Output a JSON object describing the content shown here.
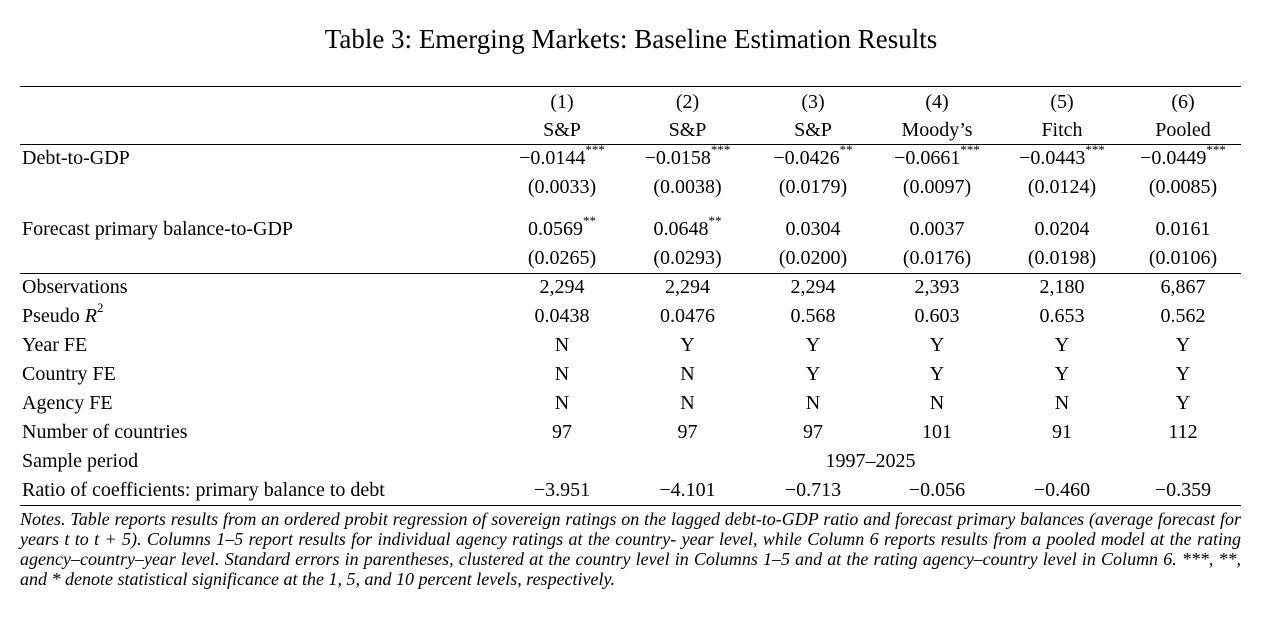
{
  "title": "Table 3: Emerging Markets: Baseline Estimation Results",
  "columns": [
    {
      "num": "(1)",
      "name": "S&P"
    },
    {
      "num": "(2)",
      "name": "S&P"
    },
    {
      "num": "(3)",
      "name": "S&P"
    },
    {
      "num": "(4)",
      "name": "Moody’s"
    },
    {
      "num": "(5)",
      "name": "Fitch"
    },
    {
      "num": "(6)",
      "name": "Pooled"
    }
  ],
  "coefficients": [
    {
      "label": "Debt-to-GDP",
      "estimates": [
        "−0.0144",
        "−0.0158",
        "−0.0426",
        "−0.0661",
        "−0.0443",
        "−0.0449"
      ],
      "stars": [
        "***",
        "***",
        "**",
        "***",
        "***",
        "***"
      ],
      "se": [
        "(0.0033)",
        "(0.0038)",
        "(0.0179)",
        "(0.0097)",
        "(0.0124)",
        "(0.0085)"
      ]
    },
    {
      "label": "Forecast primary balance-to-GDP",
      "estimates": [
        "0.0569",
        "0.0648",
        "0.0304",
        "0.0037",
        "0.0204",
        "0.0161"
      ],
      "stars": [
        "**",
        "**",
        "",
        "",
        "",
        ""
      ],
      "se": [
        "(0.0265)",
        "(0.0293)",
        "(0.0200)",
        "(0.0176)",
        "(0.0198)",
        "(0.0106)"
      ]
    }
  ],
  "stats": [
    {
      "label": "Observations",
      "values": [
        "2,294",
        "2,294",
        "2,294",
        "2,393",
        "2,180",
        "6,867"
      ]
    },
    {
      "label": "Pseudo",
      "label_var": "R",
      "label_sup": "2",
      "values": [
        "0.0438",
        "0.0476",
        "0.568",
        "0.603",
        "0.653",
        "0.562"
      ]
    },
    {
      "label": "Year FE",
      "values": [
        "N",
        "Y",
        "Y",
        "Y",
        "Y",
        "Y"
      ]
    },
    {
      "label": "Country FE",
      "values": [
        "N",
        "N",
        "Y",
        "Y",
        "Y",
        "Y"
      ]
    },
    {
      "label": "Agency FE",
      "values": [
        "N",
        "N",
        "N",
        "N",
        "N",
        "Y"
      ]
    },
    {
      "label": "Number of countries",
      "values": [
        "97",
        "97",
        "97",
        "101",
        "91",
        "112"
      ]
    }
  ],
  "sample_period": {
    "label": "Sample period",
    "value": "1997–2025"
  },
  "ratio": {
    "label": "Ratio of coefficients: primary balance to debt",
    "values": [
      "−3.951",
      "−4.101",
      "−0.713",
      "−0.056",
      "−0.460",
      "−0.359"
    ]
  },
  "notes": {
    "lead": "Notes.",
    "text": "Table reports results from an ordered probit regression of sovereign ratings on the lagged debt-to-GDP ratio and forecast primary balances (average forecast for years t to t + 5). Columns 1–5 report results for individual agency ratings at the country- year level, while Column 6 reports results from a pooled model at the rating agency–country–year level. Standard errors in parentheses, clustered at the country level in Columns 1–5 and at the rating agency–country level in Column 6. ***, **, and * denote statistical significance at the 1, 5, and 10 percent levels, respectively."
  }
}
